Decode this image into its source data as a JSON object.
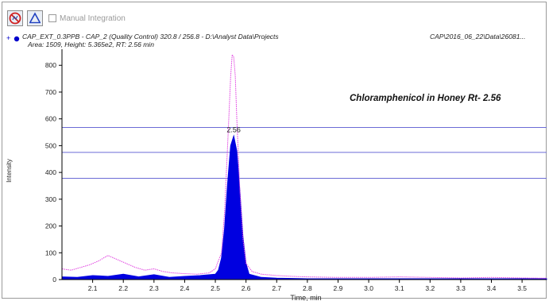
{
  "toolbar": {
    "manual_integration_label": "Manual Integration",
    "buttons": [
      "disable-icon",
      "baseline-peak-icon"
    ]
  },
  "header": {
    "sample_line": "CAP_EXT_0.3PPB - CAP_2 (Quality Control) 320.8 / 256.8 - D:\\Analyst Data\\Projects",
    "path_right": "CAP\\2016_06_22\\Data\\26081...",
    "stats_line": "Area: 1509, Height: 5.365e2, RT: 2.56 min",
    "marker": "+"
  },
  "colors": {
    "peak_fill": "#0000e0",
    "overlay_trace": "#e040e0",
    "threshold_lines": "#6b6bd6",
    "axis": "#000000"
  },
  "chart_data": {
    "type": "line",
    "title": "Chloramphenicol in Honey Rt- 2.56",
    "xlabel": "Time, min",
    "ylabel": "Intensity",
    "xlim": [
      2.0,
      3.58
    ],
    "ylim": [
      0,
      860
    ],
    "x_ticks": [
      2.1,
      2.2,
      2.3,
      2.4,
      2.5,
      2.6,
      2.7,
      2.8,
      2.9,
      3.0,
      3.1,
      3.2,
      3.3,
      3.4,
      3.5
    ],
    "y_ticks": [
      0,
      100,
      200,
      300,
      400,
      500,
      600,
      700,
      800
    ],
    "peak_label": "2.56",
    "horizontal_lines": [
      568,
      475,
      378
    ],
    "series": [
      {
        "role": "sample-filled",
        "x": [
          2.0,
          2.05,
          2.1,
          2.15,
          2.2,
          2.25,
          2.3,
          2.35,
          2.4,
          2.45,
          2.5,
          2.51,
          2.52,
          2.53,
          2.54,
          2.55,
          2.56,
          2.57,
          2.58,
          2.59,
          2.6,
          2.61,
          2.65,
          2.7,
          2.8,
          2.9,
          3.0,
          3.1,
          3.2,
          3.3,
          3.4,
          3.5,
          3.58
        ],
        "y": [
          10,
          8,
          15,
          12,
          20,
          10,
          18,
          8,
          12,
          15,
          20,
          35,
          80,
          190,
          360,
          500,
          536,
          480,
          330,
          160,
          60,
          20,
          8,
          5,
          3,
          3,
          3,
          3,
          3,
          3,
          3,
          3,
          3
        ]
      },
      {
        "role": "overlay",
        "x": [
          2.0,
          2.03,
          2.06,
          2.09,
          2.12,
          2.15,
          2.18,
          2.21,
          2.24,
          2.27,
          2.3,
          2.33,
          2.36,
          2.4,
          2.44,
          2.48,
          2.5,
          2.52,
          2.53,
          2.54,
          2.55,
          2.555,
          2.56,
          2.565,
          2.57,
          2.58,
          2.59,
          2.6,
          2.62,
          2.65,
          2.7,
          2.75,
          2.8,
          2.9,
          3.0,
          3.1,
          3.2,
          3.3,
          3.4,
          3.5,
          3.58
        ],
        "y": [
          40,
          35,
          45,
          55,
          70,
          90,
          75,
          60,
          45,
          35,
          40,
          30,
          25,
          22,
          20,
          25,
          40,
          100,
          250,
          500,
          760,
          840,
          830,
          760,
          600,
          330,
          150,
          60,
          30,
          20,
          15,
          12,
          10,
          8,
          8,
          10,
          8,
          6,
          8,
          6,
          5
        ]
      }
    ]
  }
}
